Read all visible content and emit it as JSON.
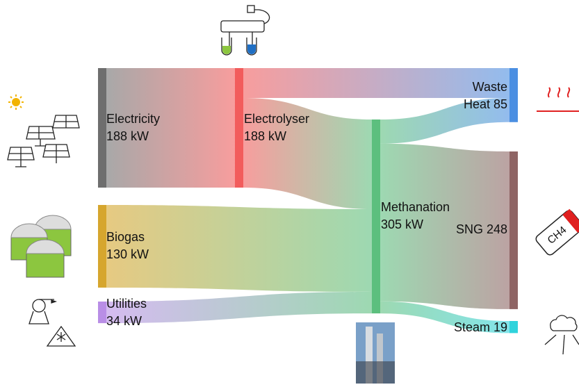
{
  "chart_data": {
    "type": "sankey",
    "nodes": [
      {
        "label_lines": [
          "Electricity",
          "188 kW"
        ],
        "value": 188,
        "color": "#6e6e6e"
      },
      {
        "label_lines": [
          "Electrolyser",
          "188 kW"
        ],
        "value": 188,
        "color": "#f25c5c"
      },
      {
        "label_lines": [
          "Biogas",
          "130 kW"
        ],
        "value": 130,
        "color": "#d6a62e"
      },
      {
        "label_lines": [
          "Utilities",
          "34 kW"
        ],
        "value": 34,
        "color": "#b98ee6"
      },
      {
        "label_lines": [
          "Methanation",
          "305 kW"
        ],
        "value": 305,
        "color": "#5cbf7e"
      },
      {
        "label_lines": [
          "Waste",
          "Heat 85"
        ],
        "value": 85,
        "color": "#4b8fe2"
      },
      {
        "label_lines": [
          "SNG 248"
        ],
        "value": 248,
        "color": "#8f6565"
      },
      {
        "label_lines": [
          "Steam 19"
        ],
        "value": 19,
        "color": "#2fd3dc"
      }
    ],
    "links": [
      {
        "source": 0,
        "target": 1,
        "value": 188
      },
      {
        "source": 1,
        "target": 5,
        "value": 47
      },
      {
        "source": 1,
        "target": 4,
        "value": 141
      },
      {
        "source": 2,
        "target": 4,
        "value": 130
      },
      {
        "source": 3,
        "target": 4,
        "value": 34
      },
      {
        "source": 4,
        "target": 5,
        "value": 38
      },
      {
        "source": 4,
        "target": 6,
        "value": 248
      },
      {
        "source": 4,
        "target": 7,
        "value": 19
      }
    ],
    "icon_text": "CH4"
  }
}
